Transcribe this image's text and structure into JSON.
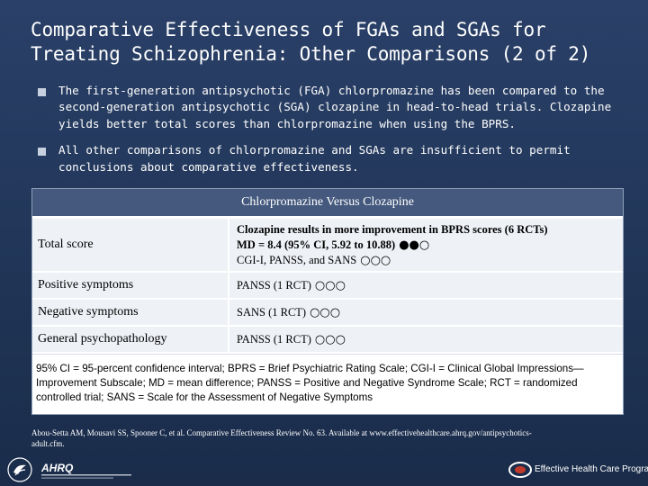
{
  "slide": {
    "title": "Comparative Effectiveness of FGAs and SGAs for Treating Schizophrenia: Other Comparisons (2 of 2)",
    "bullets": [
      "The first-generation antipsychotic (FGA) chlorpromazine has been compared to the second-generation antipsychotic (SGA) clozapine in head-to-head trials. Clozapine yields better total scores than chlorpromazine when using the BPRS.",
      "All other comparisons of chlorpromazine and SGAs are insufficient to permit conclusions about comparative effectiveness."
    ]
  },
  "table": {
    "header": "Chlorpromazine Versus Clozapine",
    "rows": [
      {
        "label": "Total score",
        "line1": "Clozapine results in more improvement in BPRS scores (6 RCTs)",
        "line2": "MD = 8.4 (95% CI, 5.92 to 10.88)",
        "line2_rating": "●●○",
        "line3": "CGI-I, PANSS, and SANS",
        "line3_rating": "○○○"
      },
      {
        "label": "Positive symptoms",
        "text": "PANSS (1 RCT)",
        "rating": "○○○"
      },
      {
        "label": "Negative symptoms",
        "text": "SANS (1 RCT)",
        "rating": "○○○"
      },
      {
        "label": "General psychopathology",
        "text": "PANSS (1 RCT)",
        "rating": "○○○"
      }
    ],
    "footnote": "95% CI = 95-percent confidence interval; BPRS = Brief Psychiatric Rating Scale; CGI-I = Clinical Global Impressions—Improvement Subscale; MD = mean difference; PANSS = Positive and Negative Syndrome Scale; RCT = randomized controlled trial; SANS = Scale for the Assessment of Negative Symptoms"
  },
  "citation": "Abou-Setta AM, Mousavi SS, Spooner C, et al. Comparative Effectiveness Review No. 63. Available at www.effectivehealthcare.ahrq.gov/antipsychotics-adult.cfm.",
  "footer": {
    "hhs_logo": "hhs-eagle-logo",
    "ahrq_logo": "AHRQ",
    "ehc_label": "Effective Health Care Program"
  }
}
